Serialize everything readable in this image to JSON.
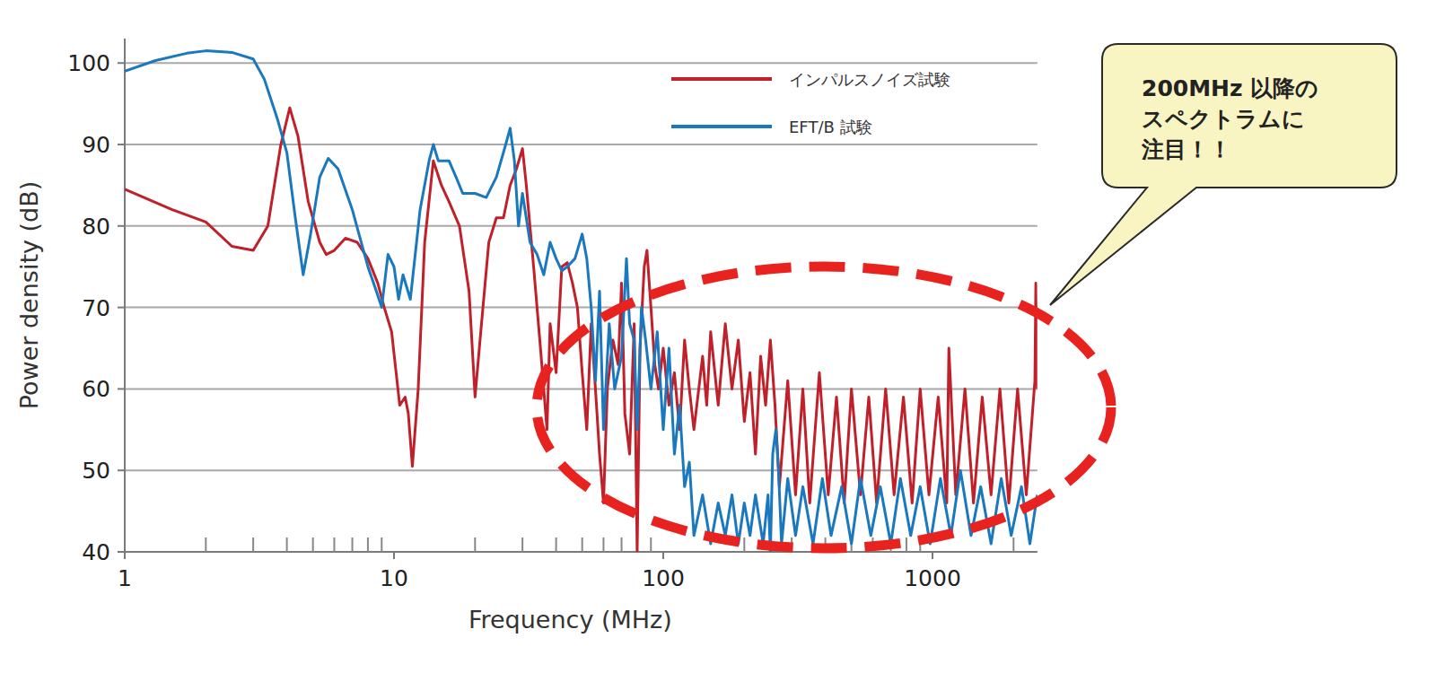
{
  "chart_data": {
    "type": "line",
    "x_label": "Frequency (MHz)",
    "y_label": "Power density (dB)",
    "log": "x",
    "grid": true,
    "legend": "upper right",
    "xlim": [
      1,
      2450
    ],
    "ylim": [
      40,
      103
    ],
    "xticks": [
      1,
      10,
      100,
      1000
    ],
    "yticks": [
      40,
      50,
      60,
      70,
      80,
      90,
      100
    ],
    "annotations": [
      {
        "text": [
          "200MHz 以降の",
          "スペクトラムに",
          "注目！！"
        ]
      }
    ],
    "series": [
      {
        "name": "インパルスノイズ試験",
        "color": "#c0202a",
        "x": [
          1,
          1.5,
          2,
          2.5,
          3,
          3.4,
          3.8,
          4.1,
          4.4,
          4.8,
          5.3,
          5.6,
          6,
          6.6,
          7.3,
          8,
          8.7,
          9.2,
          9.8,
          10.5,
          11,
          11.3,
          11.7,
          12.3,
          13,
          14,
          15,
          16,
          17.5,
          19,
          20,
          21,
          22.5,
          24,
          25.5,
          27,
          28.5,
          30,
          31,
          33,
          35,
          37,
          38,
          40,
          42,
          44,
          46,
          48,
          50,
          52,
          54,
          56,
          58,
          60,
          62,
          65,
          68,
          70,
          72,
          75,
          78,
          80,
          82,
          85,
          87,
          90,
          93,
          96,
          100,
          105,
          110,
          115,
          120,
          125,
          130,
          140,
          145,
          150,
          160,
          170,
          180,
          190,
          200,
          210,
          220,
          230,
          240,
          250,
          260,
          270,
          290,
          310,
          330,
          350,
          380,
          410,
          440,
          470,
          500,
          540,
          580,
          620,
          670,
          720,
          780,
          840,
          900,
          970,
          1050,
          1130,
          1150,
          1220,
          1320,
          1420,
          1530,
          1650,
          1780,
          1920,
          2070,
          2230,
          2400,
          2420,
          2450
        ],
        "values": [
          84.5,
          82,
          80.5,
          77.5,
          77,
          80,
          90,
          94.5,
          91,
          83,
          78,
          76.5,
          77,
          78.5,
          78,
          76,
          73,
          70,
          67,
          58,
          59,
          57,
          50.5,
          60,
          78,
          88,
          85,
          83,
          80,
          72,
          59,
          67,
          78,
          81,
          81,
          85,
          87,
          89.5,
          85,
          75,
          65,
          55,
          68,
          62,
          75,
          75.5,
          73,
          70,
          62,
          55,
          68,
          60,
          52,
          46,
          60,
          66,
          63,
          73,
          57,
          52,
          68,
          40,
          65,
          75,
          77,
          70,
          63,
          60,
          65,
          58,
          62,
          55,
          66,
          60,
          55,
          64,
          58,
          67,
          58,
          68,
          60,
          66,
          56,
          62,
          52,
          64,
          58,
          66,
          58,
          48,
          61,
          47,
          60,
          46,
          62,
          47,
          59,
          46,
          60,
          47,
          59,
          46,
          60,
          47,
          59,
          46,
          60,
          47,
          59,
          46,
          65,
          47,
          60,
          46,
          59,
          47,
          60,
          46,
          60,
          47,
          61,
          73,
          60
        ]
      },
      {
        "name": "EFT/B 試験",
        "color": "#1a78bf",
        "x": [
          1,
          1.3,
          1.7,
          2,
          2.5,
          3,
          3.3,
          3.7,
          4,
          4.3,
          4.6,
          4.9,
          5.3,
          5.7,
          6.2,
          7,
          8,
          8.6,
          9,
          9.5,
          10,
          10.4,
          10.8,
          11.5,
          12.5,
          13.5,
          14,
          14.6,
          16,
          17,
          18,
          20,
          22,
          24,
          26,
          27,
          28,
          29,
          30,
          32,
          34,
          36,
          38,
          40,
          42,
          44,
          47,
          50,
          52,
          54,
          56,
          58,
          60,
          63,
          66,
          70,
          73,
          75,
          78,
          80,
          83,
          86,
          90,
          95,
          100,
          105,
          110,
          115,
          120,
          125,
          130,
          140,
          150,
          160,
          170,
          180,
          190,
          200,
          210,
          220,
          235,
          245,
          250,
          255,
          262,
          268,
          275,
          290,
          310,
          330,
          360,
          390,
          420,
          460,
          500,
          540,
          590,
          640,
          700,
          760,
          830,
          900,
          980,
          1070,
          1170,
          1270,
          1390,
          1510,
          1650,
          1800,
          1960,
          2140,
          2300,
          2450
        ],
        "values": [
          99,
          100.3,
          101.2,
          101.5,
          101.3,
          100.5,
          98,
          93,
          89,
          81,
          74,
          79,
          86,
          88.3,
          87,
          82,
          75,
          72,
          70,
          76.5,
          75,
          71,
          74,
          71,
          82,
          88,
          90,
          88,
          88,
          86,
          84,
          84,
          83.5,
          86,
          90,
          92,
          88,
          80,
          84,
          78,
          76.5,
          74,
          78,
          76,
          74.5,
          75,
          76,
          79,
          76,
          70,
          61,
          72,
          55,
          68,
          60,
          64,
          76,
          68,
          66,
          55,
          70,
          66,
          60,
          67,
          55,
          65,
          52,
          58,
          48,
          51,
          42,
          47,
          41,
          46,
          42,
          47,
          41,
          46,
          42,
          47,
          41,
          47,
          40,
          52,
          55,
          50,
          41,
          49,
          42,
          48,
          41,
          49,
          42,
          48,
          41,
          49,
          42,
          48,
          41,
          49,
          42,
          48,
          41,
          49,
          42,
          50,
          42,
          48,
          41,
          49,
          42,
          48,
          41,
          47
        ]
      }
    ]
  }
}
